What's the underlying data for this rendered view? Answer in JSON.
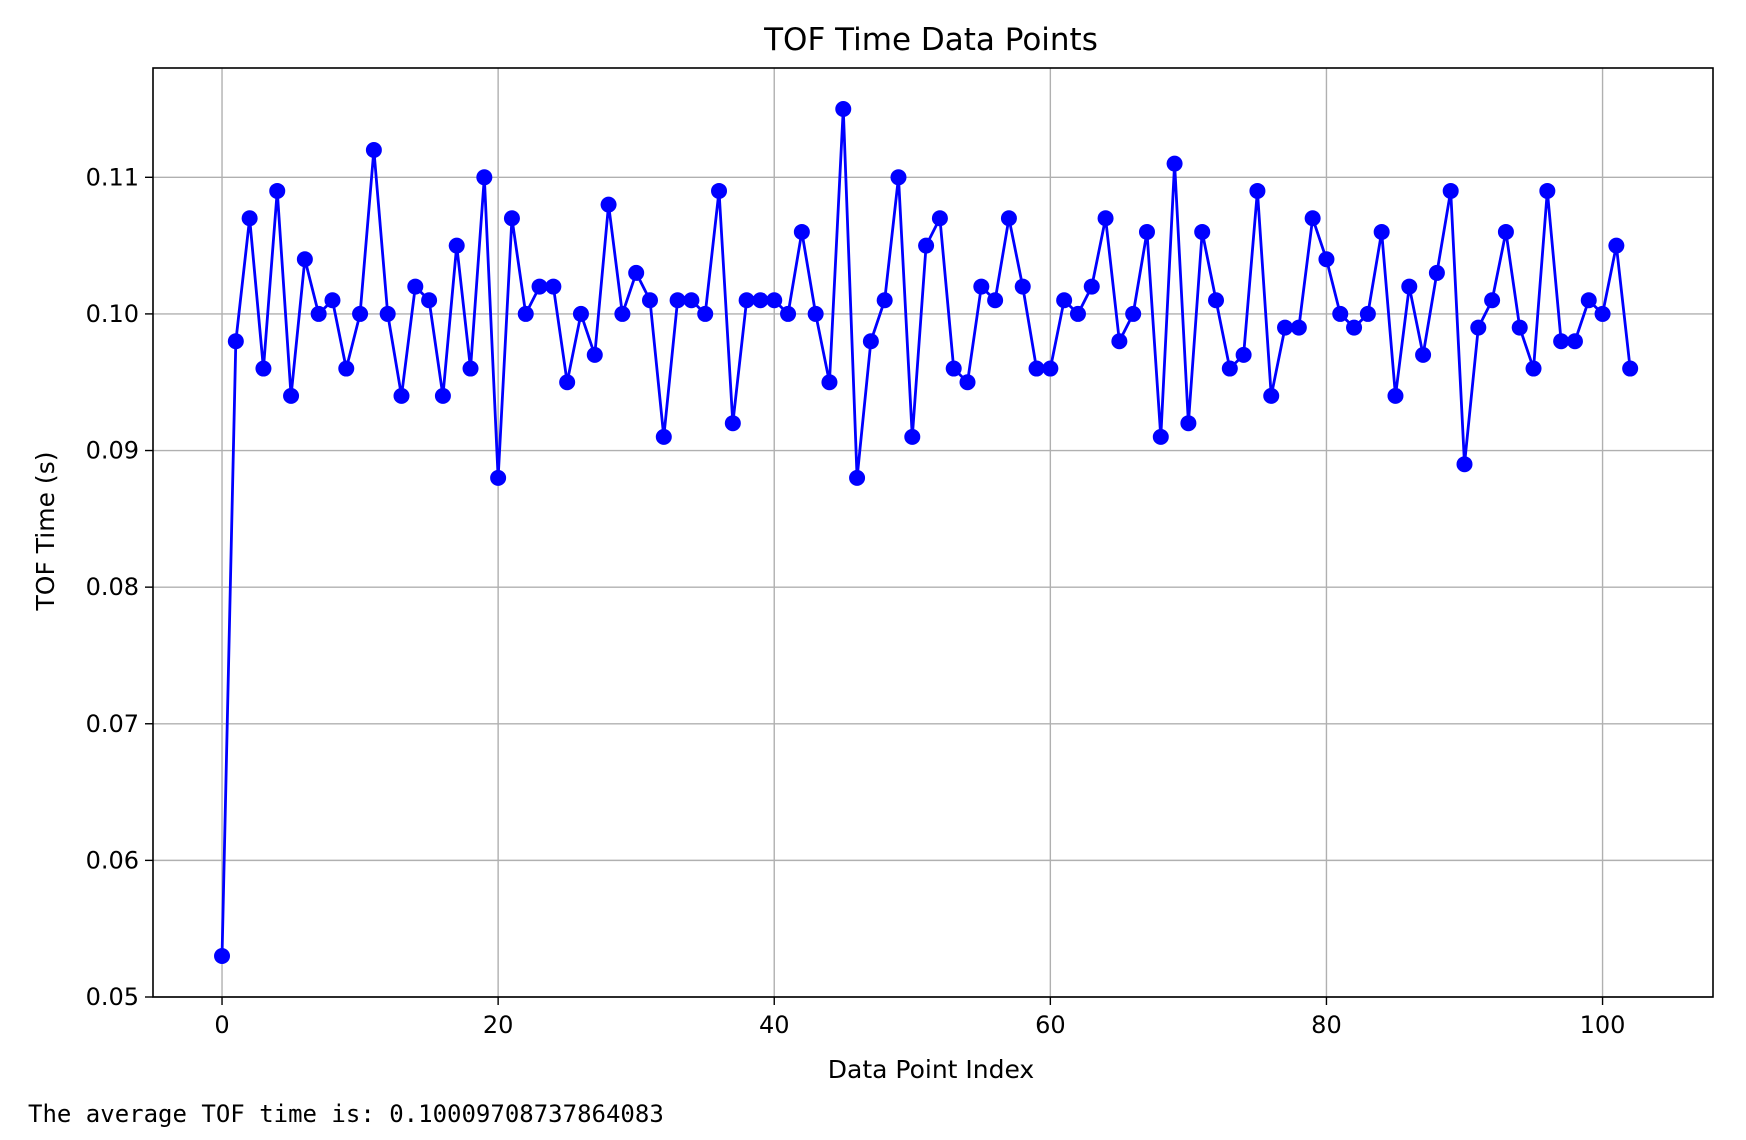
{
  "chart_data": {
    "type": "line",
    "title": "TOF Time Data Points",
    "xlabel": "Data Point Index",
    "ylabel": "TOF Time (s)",
    "xlim": [
      -5,
      108
    ],
    "ylim": [
      0.05,
      0.118
    ],
    "xticks": [
      0,
      20,
      40,
      60,
      80,
      100
    ],
    "yticks": [
      0.05,
      0.06,
      0.07,
      0.08,
      0.09,
      0.1,
      0.11
    ],
    "ytick_labels": [
      "0.05",
      "0.06",
      "0.07",
      "0.08",
      "0.09",
      "0.10",
      "0.11"
    ],
    "grid": true,
    "marker": "circle",
    "color": "#0000ff",
    "y": [
      0.053,
      0.098,
      0.107,
      0.096,
      0.109,
      0.094,
      0.104,
      0.1,
      0.101,
      0.096,
      0.1,
      0.112,
      0.1,
      0.094,
      0.102,
      0.101,
      0.094,
      0.105,
      0.096,
      0.11,
      0.088,
      0.107,
      0.1,
      0.102,
      0.102,
      0.095,
      0.1,
      0.097,
      0.108,
      0.1,
      0.103,
      0.101,
      0.091,
      0.101,
      0.101,
      0.1,
      0.109,
      0.092,
      0.101,
      0.101,
      0.101,
      0.1,
      0.106,
      0.1,
      0.095,
      0.115,
      0.088,
      0.098,
      0.101,
      0.11,
      0.091,
      0.105,
      0.107,
      0.096,
      0.095,
      0.102,
      0.101,
      0.107,
      0.102,
      0.096,
      0.096,
      0.101,
      0.1,
      0.102,
      0.107,
      0.098,
      0.1,
      0.106,
      0.091,
      0.111,
      0.092,
      0.106,
      0.101,
      0.096,
      0.097,
      0.109,
      0.094,
      0.099,
      0.099,
      0.107,
      0.104,
      0.1,
      0.099,
      0.1,
      0.106,
      0.094,
      0.102,
      0.097,
      0.103,
      0.109,
      0.089,
      0.099,
      0.101,
      0.106,
      0.099,
      0.096,
      0.109,
      0.098,
      0.098,
      0.101,
      0.1,
      0.105,
      0.096
    ]
  },
  "output_text": "The average TOF time is: 0.10009708737864083"
}
